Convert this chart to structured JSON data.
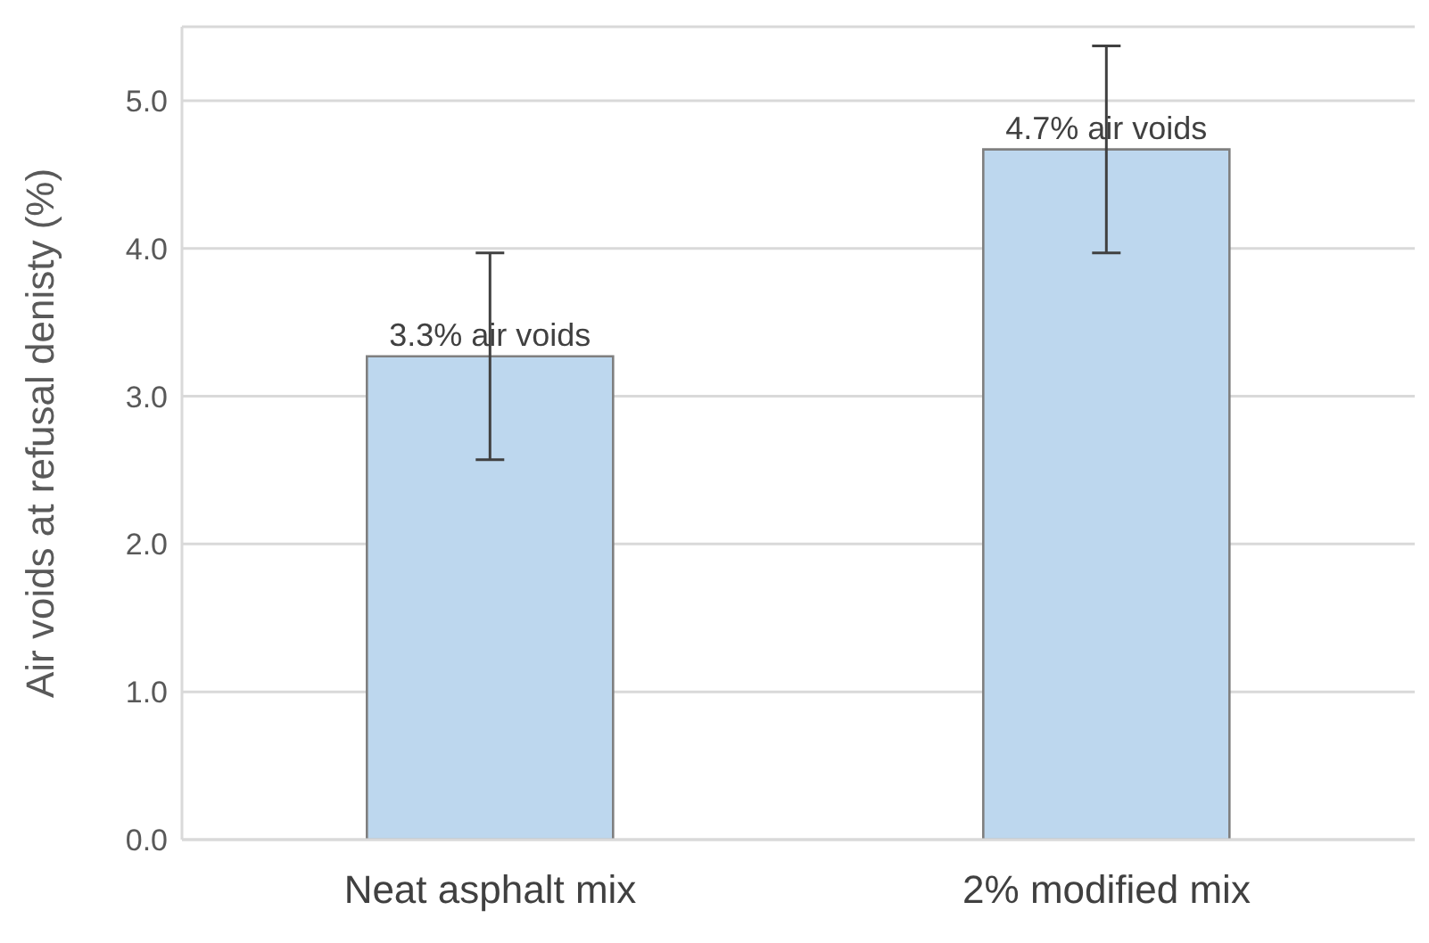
{
  "chart_data": {
    "type": "bar",
    "ylabel": "Air voids at refusal denisty (%)",
    "categories": [
      "Neat asphalt mix",
      "2% modified mix"
    ],
    "values": [
      3.27,
      4.67
    ],
    "errors": [
      0.7,
      0.7
    ],
    "value_labels": [
      "3.3% air voids",
      "4.7% air voids"
    ],
    "color": "#bdd7ee",
    "ylim": [
      0,
      5.5
    ],
    "yticks": [
      {
        "value": 0,
        "label": "0.0"
      },
      {
        "value": 1,
        "label": "1.0"
      },
      {
        "value": 2,
        "label": "2.0"
      },
      {
        "value": 3,
        "label": "3.0"
      },
      {
        "value": 4,
        "label": "4.0"
      },
      {
        "value": 5,
        "label": "5.0"
      }
    ],
    "grid": "y",
    "legend": false
  }
}
